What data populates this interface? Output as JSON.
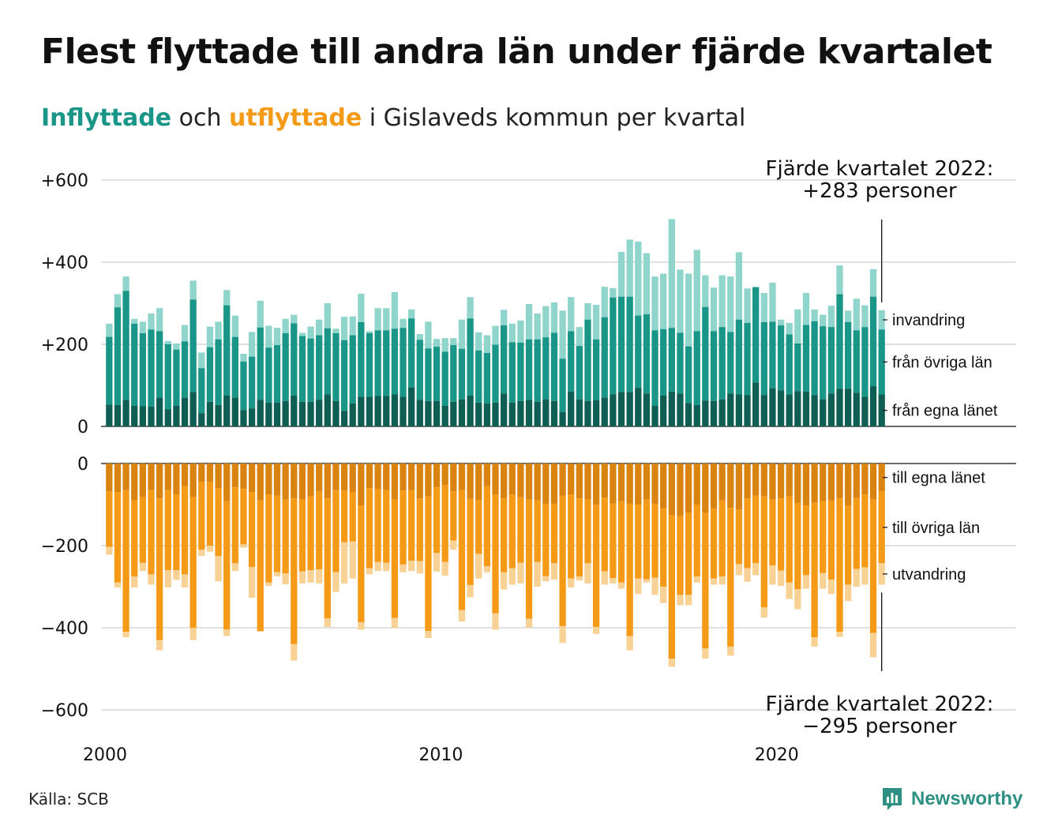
{
  "header": {
    "title": "Flest flyttade till andra län under fjärde kvartalet",
    "subtitle_inflow": "Inflyttade",
    "subtitle_and": " och ",
    "subtitle_outflow": "utflyttade",
    "subtitle_rest": " i Gislaveds kommun per kvartal"
  },
  "colors": {
    "in_own_county": "#0f5e53",
    "in_other_counties": "#1a9688",
    "in_immigration": "#8fd5cc",
    "out_own_county": "#d98410",
    "out_other_counties": "#f49a16",
    "out_emigration": "#f8d195",
    "grid": "#e0e0e0",
    "axis": "#111111"
  },
  "footer": {
    "source": "Källa: SCB",
    "brand": "Newsworthy",
    "brand_icon": "newsworthy-logo-icon"
  },
  "chart_data": {
    "type": "bar",
    "stacked": true,
    "x_unit": "quarter",
    "x_start": "2000 Q1",
    "x_end": "2022 Q4",
    "x_ticks": [
      "2000",
      "2010",
      "2020"
    ],
    "grid": true,
    "panels": [
      {
        "name": "inflow",
        "y_ticks": [
          "+600",
          "+400",
          "+200",
          "0"
        ],
        "y_tick_values": [
          600,
          400,
          200,
          0
        ],
        "ylim": [
          0,
          600
        ],
        "series_labels": [
          "från egna länet",
          "från övriga län",
          "invandring"
        ],
        "total": [
          250,
          322,
          365,
          262,
          255,
          275,
          288,
          208,
          202,
          247,
          355,
          180,
          243,
          255,
          332,
          270,
          177,
          230,
          306,
          245,
          240,
          262,
          272,
          228,
          243,
          260,
          300,
          238,
          267,
          268,
          323,
          232,
          288,
          288,
          327,
          262,
          285,
          225,
          255,
          213,
          215,
          215,
          260,
          315,
          229,
          222,
          245,
          284,
          250,
          258,
          298,
          275,
          293,
          302,
          282,
          315,
          242,
          300,
          296,
          340,
          337,
          425,
          455,
          450,
          422,
          365,
          372,
          505,
          382,
          372,
          430,
          368,
          338,
          368,
          365,
          424,
          336,
          340,
          325,
          350,
          260,
          252,
          285,
          325,
          285,
          272,
          294,
          392,
          282,
          311,
          295,
          383,
          283
        ],
        "stacks": {
          "from_own_county": [
            53,
            52,
            65,
            50,
            49,
            48,
            70,
            42,
            50,
            70,
            84,
            32,
            60,
            52,
            75,
            70,
            40,
            44,
            65,
            58,
            58,
            62,
            75,
            60,
            60,
            65,
            78,
            62,
            38,
            56,
            72,
            72,
            74,
            74,
            78,
            72,
            95,
            65,
            62,
            62,
            50,
            60,
            66,
            75,
            58,
            56,
            58,
            80,
            58,
            62,
            65,
            60,
            66,
            62,
            35,
            85,
            66,
            62,
            64,
            70,
            78,
            84,
            84,
            94,
            80,
            50,
            75,
            85,
            80,
            57,
            52,
            63,
            62,
            66,
            80,
            78,
            76,
            107,
            76,
            93,
            88,
            78,
            86,
            85,
            76,
            66,
            80,
            92,
            92,
            82,
            72,
            98,
            78
          ],
          "from_other_counties": [
            165,
            238,
            265,
            200,
            178,
            188,
            162,
            158,
            137,
            137,
            225,
            110,
            133,
            160,
            220,
            148,
            118,
            126,
            176,
            134,
            140,
            165,
            176,
            160,
            154,
            157,
            161,
            165,
            172,
            166,
            182,
            155,
            160,
            160,
            160,
            168,
            168,
            146,
            128,
            132,
            132,
            138,
            123,
            188,
            127,
            123,
            141,
            166,
            147,
            142,
            147,
            152,
            151,
            166,
            130,
            147,
            130,
            198,
            148,
            196,
            236,
            232,
            232,
            176,
            193,
            184,
            162,
            155,
            148,
            138,
            180,
            228,
            170,
            176,
            150,
            182,
            176,
            232,
            178,
            162,
            158,
            146,
            116,
            162,
            180,
            178,
            162,
            230,
            162,
            152,
            170,
            218,
            158
          ]
        },
        "annotation": [
          "Fjärde kvartalet 2022:",
          "+283 personer"
        ]
      },
      {
        "name": "outflow",
        "y_ticks": [
          "0",
          "−200",
          "−400",
          "−600"
        ],
        "y_tick_values": [
          0,
          -200,
          -400,
          -600
        ],
        "ylim": [
          -600,
          0
        ],
        "series_labels": [
          "till egna länet",
          "till övriga län",
          "utvandring"
        ],
        "total": [
          -222,
          -302,
          -423,
          -302,
          -262,
          -295,
          -455,
          -302,
          -283,
          -302,
          -430,
          -225,
          -215,
          -287,
          -420,
          -262,
          -205,
          -327,
          -410,
          -298,
          -275,
          -294,
          -480,
          -292,
          -290,
          -292,
          -398,
          -313,
          -292,
          -280,
          -405,
          -270,
          -262,
          -262,
          -400,
          -265,
          -262,
          -268,
          -425,
          -263,
          -273,
          -210,
          -385,
          -326,
          -280,
          -265,
          -405,
          -307,
          -295,
          -292,
          -400,
          -300,
          -287,
          -283,
          -437,
          -302,
          -285,
          -292,
          -415,
          -295,
          -292,
          -305,
          -455,
          -318,
          -290,
          -320,
          -340,
          -495,
          -345,
          -345,
          -290,
          -475,
          -295,
          -295,
          -468,
          -272,
          -288,
          -272,
          -375,
          -295,
          -298,
          -330,
          -355,
          -305,
          -446,
          -305,
          -318,
          -422,
          -335,
          -300,
          -295,
          -472,
          -295
        ],
        "stacks": {
          "to_own_county": [
            -68,
            -70,
            -65,
            -90,
            -82,
            -65,
            -85,
            -65,
            -75,
            -55,
            -82,
            -45,
            -45,
            -60,
            -92,
            -58,
            -62,
            -70,
            -90,
            -75,
            -78,
            -88,
            -85,
            -88,
            -80,
            -68,
            -85,
            -65,
            -66,
            -70,
            -102,
            -60,
            -63,
            -65,
            -88,
            -66,
            -65,
            -85,
            -80,
            -58,
            -52,
            -68,
            -65,
            -86,
            -90,
            -55,
            -75,
            -85,
            -75,
            -82,
            -88,
            -90,
            -98,
            -98,
            -78,
            -75,
            -85,
            -88,
            -100,
            -83,
            -97,
            -92,
            -98,
            -100,
            -88,
            -98,
            -110,
            -125,
            -128,
            -120,
            -100,
            -120,
            -110,
            -90,
            -108,
            -112,
            -85,
            -78,
            -80,
            -88,
            -85,
            -80,
            -96,
            -102,
            -95,
            -92,
            -90,
            -85,
            -102,
            -84,
            -75,
            -88,
            -68
          ],
          "to_other_counties": [
            -135,
            -220,
            -345,
            -185,
            -160,
            -205,
            -345,
            -195,
            -185,
            -215,
            -318,
            -165,
            -155,
            -165,
            -312,
            -185,
            -135,
            -182,
            -318,
            -215,
            -187,
            -180,
            -355,
            -175,
            -180,
            -190,
            -292,
            -200,
            -126,
            -120,
            -285,
            -195,
            -177,
            -177,
            -288,
            -180,
            -172,
            -153,
            -328,
            -160,
            -188,
            -120,
            -292,
            -210,
            -130,
            -195,
            -290,
            -180,
            -180,
            -160,
            -290,
            -150,
            -176,
            -145,
            -318,
            -205,
            -190,
            -155,
            -298,
            -180,
            -182,
            -198,
            -322,
            -180,
            -194,
            -180,
            -190,
            -350,
            -192,
            -200,
            -175,
            -330,
            -170,
            -185,
            -338,
            -133,
            -170,
            -165,
            -270,
            -160,
            -176,
            -210,
            -210,
            -170,
            -328,
            -175,
            -193,
            -325,
            -193,
            -173,
            -178,
            -325,
            -175
          ]
        },
        "annotation": [
          "Fjärde kvartalet 2022:",
          "−295 personer"
        ]
      }
    ]
  }
}
